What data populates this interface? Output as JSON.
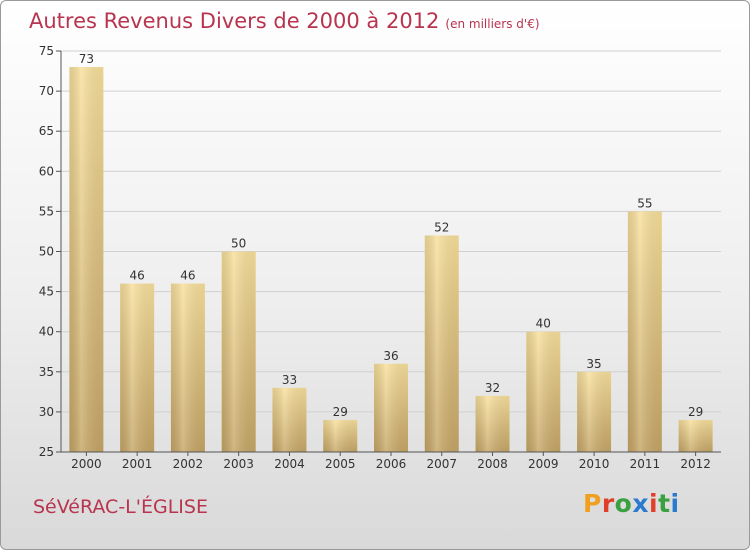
{
  "header": {
    "title": "Autres Revenus Divers de 2000 à 2012",
    "unit": "(en milliers d'€)"
  },
  "footer": {
    "city": "SéVéRAC-L'ÉGLISE",
    "brand": "Proxiti",
    "brand_colors": [
      "#f0a020",
      "#e0402a",
      "#3aa040",
      "#2a7ad0",
      "#e0402a",
      "#3aa040",
      "#2a7ad0"
    ]
  },
  "colors": {
    "title": "#b8344f",
    "bar_light": "#f6dc96",
    "bar_dark": "#c8a868",
    "grid": "#d0d0d0",
    "axis": "#555555"
  },
  "chart_data": {
    "type": "bar",
    "title": "Autres Revenus Divers de 2000 à 2012",
    "categories": [
      "2000",
      "2001",
      "2002",
      "2003",
      "2004",
      "2005",
      "2006",
      "2007",
      "2008",
      "2009",
      "2010",
      "2011",
      "2012"
    ],
    "values": [
      73,
      46,
      46,
      50,
      33,
      29,
      36,
      52,
      32,
      40,
      35,
      55,
      29
    ],
    "ylim": [
      25,
      75
    ],
    "yticks": [
      25,
      30,
      35,
      40,
      45,
      50,
      55,
      60,
      65,
      70,
      75
    ],
    "grid": true,
    "xlabel": "",
    "ylabel": ""
  }
}
